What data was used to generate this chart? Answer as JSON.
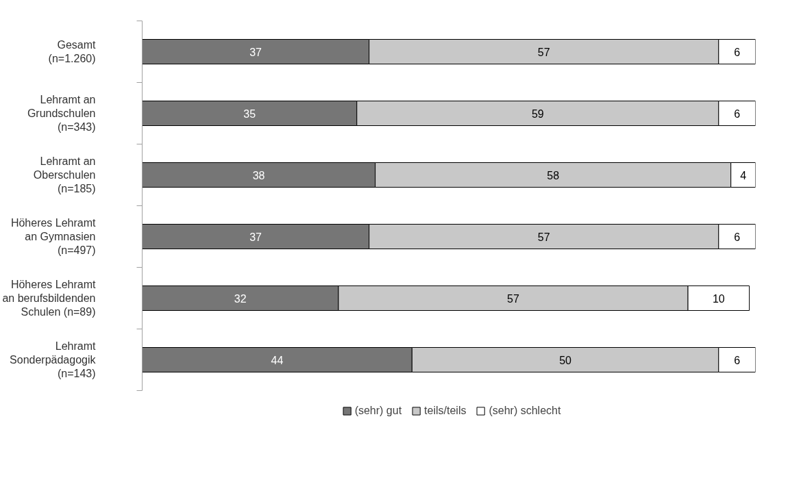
{
  "chart_data": {
    "type": "bar",
    "orientation": "horizontal",
    "stacked": true,
    "data_labels": true,
    "legend": "bottom",
    "categories": [
      "Gesamt\n(n=1.260)",
      "Lehramt an\nGrundschulen\n(n=343)",
      "Lehramt an\nOberschulen\n(n=185)",
      "Höheres Lehramt\nan Gymnasien\n(n=497)",
      "Höheres Lehramt\nan berufsbildenden\nSchulen (n=89)",
      "Lehramt\nSonderpädagogik\n(n=143)"
    ],
    "series": [
      {
        "name": "(sehr) gut",
        "color": "#767676",
        "values": [
          37,
          35,
          38,
          37,
          32,
          44
        ]
      },
      {
        "name": "teils/teils",
        "color": "#c8c8c8",
        "values": [
          57,
          59,
          58,
          57,
          57,
          50
        ]
      },
      {
        "name": "(sehr) schlecht",
        "color": "#ffffff",
        "values": [
          6,
          6,
          4,
          6,
          10,
          6
        ]
      }
    ]
  }
}
